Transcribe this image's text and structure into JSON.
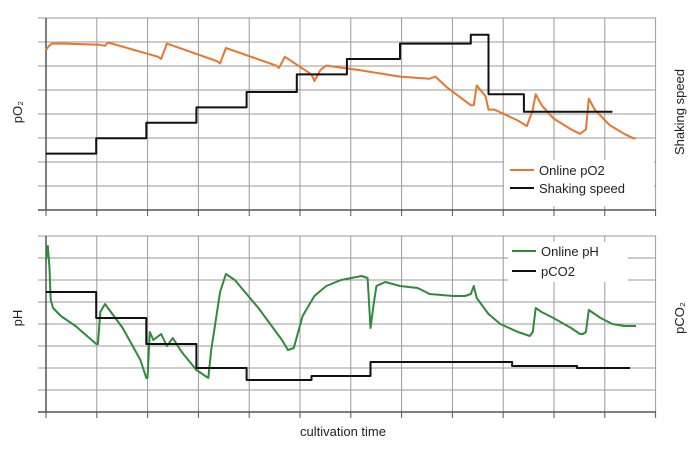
{
  "chart_data": [
    {
      "type": "line",
      "xlabel": "",
      "ylabel_left": "pO₂",
      "ylabel_right": "Shaking speed",
      "grid": true,
      "legend_position": "bottom-right",
      "xlim": [
        0,
        10
      ],
      "ylim": [
        0,
        8
      ],
      "series": [
        {
          "name": "Online pO2",
          "color": "#e8762c",
          "points": [
            [
              0.0,
              6.9
            ],
            [
              0.05,
              7.1
            ],
            [
              0.1,
              7.2
            ],
            [
              0.3,
              7.2
            ],
            [
              0.9,
              7.15
            ],
            [
              1.0,
              7.1
            ],
            [
              1.05,
              7.25
            ],
            [
              1.9,
              6.6
            ],
            [
              1.95,
              6.5
            ],
            [
              2.05,
              7.2
            ],
            [
              2.9,
              6.4
            ],
            [
              2.95,
              6.3
            ],
            [
              3.05,
              7.0
            ],
            [
              3.9,
              6.2
            ],
            [
              3.95,
              6.1
            ],
            [
              4.05,
              6.6
            ],
            [
              4.5,
              5.8
            ],
            [
              4.55,
              5.5
            ],
            [
              4.65,
              6.0
            ],
            [
              4.75,
              6.2
            ],
            [
              5.3,
              6.0
            ],
            [
              6.0,
              5.7
            ],
            [
              6.5,
              5.6
            ],
            [
              6.6,
              5.7
            ],
            [
              6.8,
              5.2
            ],
            [
              7.2,
              4.4
            ],
            [
              7.25,
              4.4
            ],
            [
              7.3,
              5.3
            ],
            [
              7.45,
              4.8
            ],
            [
              7.5,
              4.2
            ],
            [
              7.6,
              4.2
            ],
            [
              8.0,
              3.7
            ],
            [
              8.15,
              3.45
            ],
            [
              8.25,
              4.2
            ],
            [
              8.3,
              4.9
            ],
            [
              8.4,
              4.4
            ],
            [
              8.6,
              3.8
            ],
            [
              8.9,
              3.3
            ],
            [
              9.05,
              3.1
            ],
            [
              9.15,
              3.3
            ],
            [
              9.2,
              4.7
            ],
            [
              9.3,
              4.2
            ],
            [
              9.55,
              3.5
            ],
            [
              9.8,
              3.1
            ],
            [
              9.95,
              2.9
            ],
            [
              10.0,
              2.9
            ]
          ]
        },
        {
          "name": "Shaking speed",
          "color": "#111111",
          "points": [
            [
              0.0,
              2.2
            ],
            [
              0.85,
              2.2
            ],
            [
              0.85,
              2.9
            ],
            [
              1.7,
              2.9
            ],
            [
              1.7,
              3.6
            ],
            [
              2.55,
              3.6
            ],
            [
              2.55,
              4.3
            ],
            [
              3.4,
              4.3
            ],
            [
              3.4,
              5.0
            ],
            [
              4.25,
              5.0
            ],
            [
              4.25,
              5.8
            ],
            [
              5.1,
              5.8
            ],
            [
              5.1,
              6.5
            ],
            [
              6.0,
              6.5
            ],
            [
              6.0,
              7.2
            ],
            [
              7.2,
              7.2
            ],
            [
              7.2,
              7.6
            ],
            [
              7.5,
              7.6
            ],
            [
              7.5,
              4.9
            ],
            [
              8.1,
              4.9
            ],
            [
              8.1,
              4.1
            ],
            [
              8.5,
              4.1
            ],
            [
              8.5,
              4.1
            ],
            [
              9.6,
              4.1
            ]
          ]
        }
      ]
    },
    {
      "type": "line",
      "xlabel": "cultivation time",
      "ylabel_left": "pH",
      "ylabel_right": "pCO₂",
      "grid": true,
      "legend_position": "top-right",
      "xlim": [
        0,
        10
      ],
      "ylim": [
        0,
        8
      ],
      "series": [
        {
          "name": "Online pH",
          "color": "#2e8b3a",
          "points": [
            [
              0.0,
              7.2
            ],
            [
              0.03,
              7.9
            ],
            [
              0.06,
              6.8
            ],
            [
              0.08,
              5.2
            ],
            [
              0.12,
              4.8
            ],
            [
              0.25,
              4.4
            ],
            [
              0.5,
              3.9
            ],
            [
              0.85,
              3.0
            ],
            [
              0.88,
              3.0
            ],
            [
              0.92,
              4.6
            ],
            [
              1.0,
              5.0
            ],
            [
              1.3,
              3.8
            ],
            [
              1.6,
              2.2
            ],
            [
              1.7,
              1.3
            ],
            [
              1.72,
              1.3
            ],
            [
              1.76,
              3.6
            ],
            [
              1.82,
              3.2
            ],
            [
              1.95,
              3.5
            ],
            [
              2.05,
              2.9
            ],
            [
              2.15,
              3.3
            ],
            [
              2.3,
              2.6
            ],
            [
              2.55,
              1.7
            ],
            [
              2.75,
              1.3
            ],
            [
              2.8,
              2.7
            ],
            [
              2.95,
              5.6
            ],
            [
              3.05,
              6.5
            ],
            [
              3.2,
              6.2
            ],
            [
              3.6,
              4.8
            ],
            [
              4.0,
              3.2
            ],
            [
              4.1,
              2.7
            ],
            [
              4.2,
              2.8
            ],
            [
              4.35,
              4.4
            ],
            [
              4.55,
              5.4
            ],
            [
              4.75,
              5.9
            ],
            [
              5.0,
              6.2
            ],
            [
              5.35,
              6.4
            ],
            [
              5.45,
              6.3
            ],
            [
              5.5,
              3.8
            ],
            [
              5.55,
              4.9
            ],
            [
              5.6,
              5.9
            ],
            [
              5.75,
              6.1
            ],
            [
              6.0,
              5.9
            ],
            [
              6.3,
              5.8
            ],
            [
              6.5,
              5.5
            ],
            [
              6.9,
              5.4
            ],
            [
              7.1,
              5.4
            ],
            [
              7.2,
              5.5
            ],
            [
              7.25,
              5.9
            ],
            [
              7.3,
              5.3
            ],
            [
              7.5,
              4.5
            ],
            [
              7.7,
              4.0
            ],
            [
              8.0,
              3.6
            ],
            [
              8.2,
              3.4
            ],
            [
              8.25,
              3.6
            ],
            [
              8.3,
              4.8
            ],
            [
              8.4,
              4.6
            ],
            [
              8.6,
              4.3
            ],
            [
              8.9,
              3.8
            ],
            [
              9.05,
              3.5
            ],
            [
              9.1,
              3.5
            ],
            [
              9.15,
              3.6
            ],
            [
              9.2,
              4.7
            ],
            [
              9.4,
              4.3
            ],
            [
              9.6,
              4.0
            ],
            [
              9.8,
              3.9
            ],
            [
              10.0,
              3.9
            ]
          ]
        },
        {
          "name": "pCO2",
          "color": "#111111",
          "points": [
            [
              0.0,
              5.6
            ],
            [
              0.85,
              5.6
            ],
            [
              0.85,
              4.3
            ],
            [
              1.7,
              4.3
            ],
            [
              1.7,
              3.0
            ],
            [
              2.55,
              3.0
            ],
            [
              2.55,
              1.8
            ],
            [
              3.4,
              1.8
            ],
            [
              3.4,
              1.2
            ],
            [
              4.5,
              1.2
            ],
            [
              4.5,
              1.4
            ],
            [
              5.5,
              1.4
            ],
            [
              5.5,
              2.1
            ],
            [
              7.9,
              2.1
            ],
            [
              7.9,
              1.9
            ],
            [
              9.0,
              1.9
            ],
            [
              9.0,
              1.8
            ],
            [
              9.9,
              1.8
            ]
          ]
        }
      ]
    }
  ]
}
